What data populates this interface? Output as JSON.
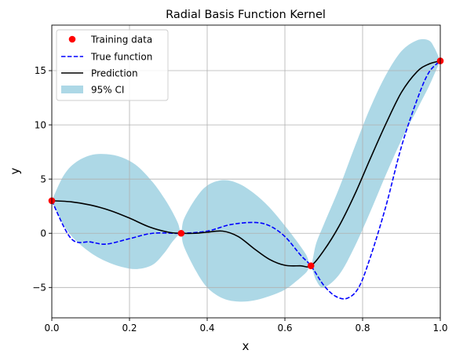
{
  "chart_data": {
    "type": "line",
    "title": "Radial Basis Function Kernel",
    "xlabel": "x",
    "ylabel": "y",
    "xlim": [
      0,
      1
    ],
    "ylim": [
      -7.8,
      19.2
    ],
    "xticks": [
      0,
      0.2,
      0.4,
      0.6,
      0.8,
      1.0
    ],
    "xtick_labels": [
      "0.0",
      "0.2",
      "0.4",
      "0.6",
      "0.8",
      "1.0"
    ],
    "yticks": [
      -5,
      0,
      5,
      10,
      15
    ],
    "ytick_labels": [
      "−5",
      "0",
      "5",
      "10",
      "15"
    ],
    "grid": true,
    "legend_position": "top-left",
    "legend": [
      "Training data",
      "True function",
      "Prediction",
      "95% CI"
    ],
    "colors": {
      "training": "#ff0000",
      "true_function": "#0000ff",
      "prediction": "#000000",
      "ci": "#add8e6",
      "grid": "#b0b0b0"
    },
    "training_data": {
      "x": [
        0.0,
        0.333,
        0.667,
        1.0
      ],
      "y": [
        3.0,
        0.0,
        -3.0,
        15.9
      ]
    },
    "true_function": {
      "x": [
        0.0,
        0.05,
        0.1,
        0.14,
        0.2,
        0.26,
        0.333,
        0.4,
        0.46,
        0.52,
        0.56,
        0.6,
        0.64,
        0.667,
        0.7,
        0.73,
        0.76,
        0.79,
        0.82,
        0.86,
        0.9,
        0.94,
        0.97,
        1.0
      ],
      "y": [
        3.0,
        -0.5,
        -0.8,
        -1.0,
        -0.5,
        0.0,
        0.0,
        0.2,
        0.8,
        1.0,
        0.7,
        -0.3,
        -2.0,
        -3.0,
        -4.8,
        -5.8,
        -6.0,
        -5.0,
        -2.2,
        2.5,
        8.0,
        12.3,
        14.8,
        15.9
      ]
    },
    "prediction": {
      "x": [
        0.0,
        0.05,
        0.1,
        0.15,
        0.2,
        0.25,
        0.3,
        0.333,
        0.37,
        0.4,
        0.44,
        0.48,
        0.52,
        0.56,
        0.6,
        0.64,
        0.667,
        0.7,
        0.74,
        0.78,
        0.82,
        0.86,
        0.9,
        0.94,
        0.97,
        1.0
      ],
      "y": [
        3.0,
        2.9,
        2.6,
        2.1,
        1.4,
        0.6,
        0.1,
        0.0,
        0.0,
        0.1,
        0.2,
        -0.3,
        -1.4,
        -2.4,
        -2.95,
        -3.0,
        -3.0,
        -1.6,
        0.7,
        3.6,
        6.9,
        10.1,
        13.0,
        14.9,
        15.6,
        15.9
      ]
    },
    "ci_upper": {
      "x": [
        0.0,
        0.03,
        0.06,
        0.1,
        0.14,
        0.18,
        0.22,
        0.26,
        0.29,
        0.31,
        0.325,
        0.333,
        0.34,
        0.37,
        0.4,
        0.44,
        0.48,
        0.52,
        0.56,
        0.6,
        0.63,
        0.655,
        0.667,
        0.68,
        0.7,
        0.74,
        0.78,
        0.82,
        0.86,
        0.9,
        0.94,
        0.97,
        0.985,
        1.0
      ],
      "y": [
        3.0,
        5.3,
        6.5,
        7.2,
        7.3,
        7.0,
        6.2,
        4.7,
        3.2,
        2.0,
        0.9,
        0.0,
        1.3,
        3.2,
        4.4,
        4.9,
        4.6,
        3.7,
        2.4,
        0.7,
        -0.7,
        -2.0,
        -3.0,
        -1.0,
        0.8,
        4.2,
        8.0,
        11.6,
        14.6,
        16.8,
        17.8,
        17.8,
        17.1,
        15.9
      ]
    },
    "ci_lower": {
      "x": [
        0.0,
        0.03,
        0.06,
        0.1,
        0.14,
        0.18,
        0.22,
        0.26,
        0.29,
        0.31,
        0.325,
        0.333,
        0.34,
        0.37,
        0.4,
        0.44,
        0.48,
        0.52,
        0.56,
        0.6,
        0.63,
        0.655,
        0.667,
        0.68,
        0.7,
        0.74,
        0.78,
        0.82,
        0.86,
        0.9,
        0.94,
        0.97,
        0.985,
        1.0
      ],
      "y": [
        3.0,
        0.8,
        -0.6,
        -1.8,
        -2.6,
        -3.1,
        -3.3,
        -2.9,
        -1.8,
        -0.8,
        -0.2,
        0.0,
        -1.2,
        -3.4,
        -5.0,
        -6.0,
        -6.3,
        -6.2,
        -5.8,
        -5.2,
        -4.4,
        -3.6,
        -3.0,
        -4.3,
        -5.0,
        -3.8,
        -1.2,
        2.0,
        5.4,
        8.6,
        11.4,
        13.5,
        14.7,
        15.9
      ]
    }
  }
}
